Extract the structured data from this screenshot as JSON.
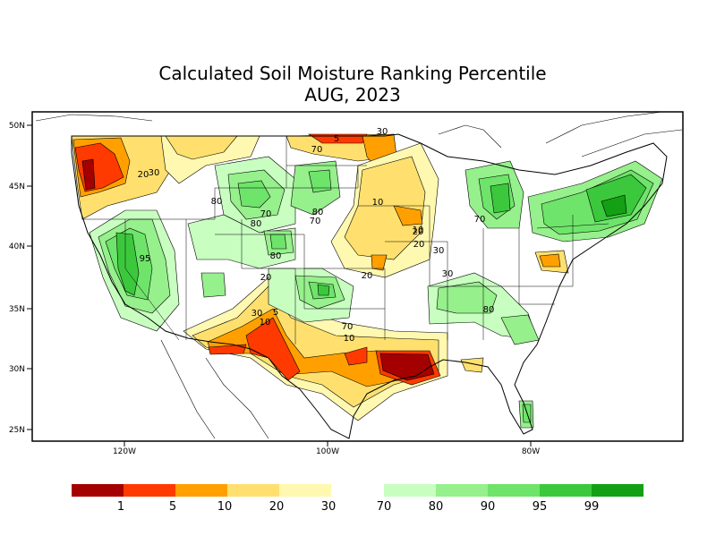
{
  "title": {
    "line1": "Calculated Soil Moisture Ranking Percentile",
    "line2": "AUG, 2023"
  },
  "axes": {
    "lat_ticks": [
      "50N",
      "45N",
      "40N",
      "35N",
      "30N",
      "25N"
    ],
    "lon_ticks": [
      "120W",
      "100W",
      "80W"
    ]
  },
  "legend": {
    "dry": {
      "colors": [
        "#a50000",
        "#ff3a00",
        "#ffa000",
        "#ffe06e",
        "#fff8b0"
      ],
      "labels": [
        "1",
        "5",
        "10",
        "20",
        "30"
      ]
    },
    "wet": {
      "colors": [
        "#c8ffc0",
        "#96f08c",
        "#6ee46a",
        "#3cc83c",
        "#14a014"
      ],
      "labels": [
        "70",
        "80",
        "90",
        "95",
        "99"
      ]
    }
  },
  "contour_labels": [
    "5",
    "30",
    "20",
    "30",
    "70",
    "80",
    "70",
    "80",
    "70",
    "10",
    "80",
    "95",
    "20",
    "10",
    "30",
    "5",
    "30",
    "10",
    "20",
    "30",
    "20",
    "70",
    "80",
    "20",
    "10",
    "70",
    "80"
  ]
}
